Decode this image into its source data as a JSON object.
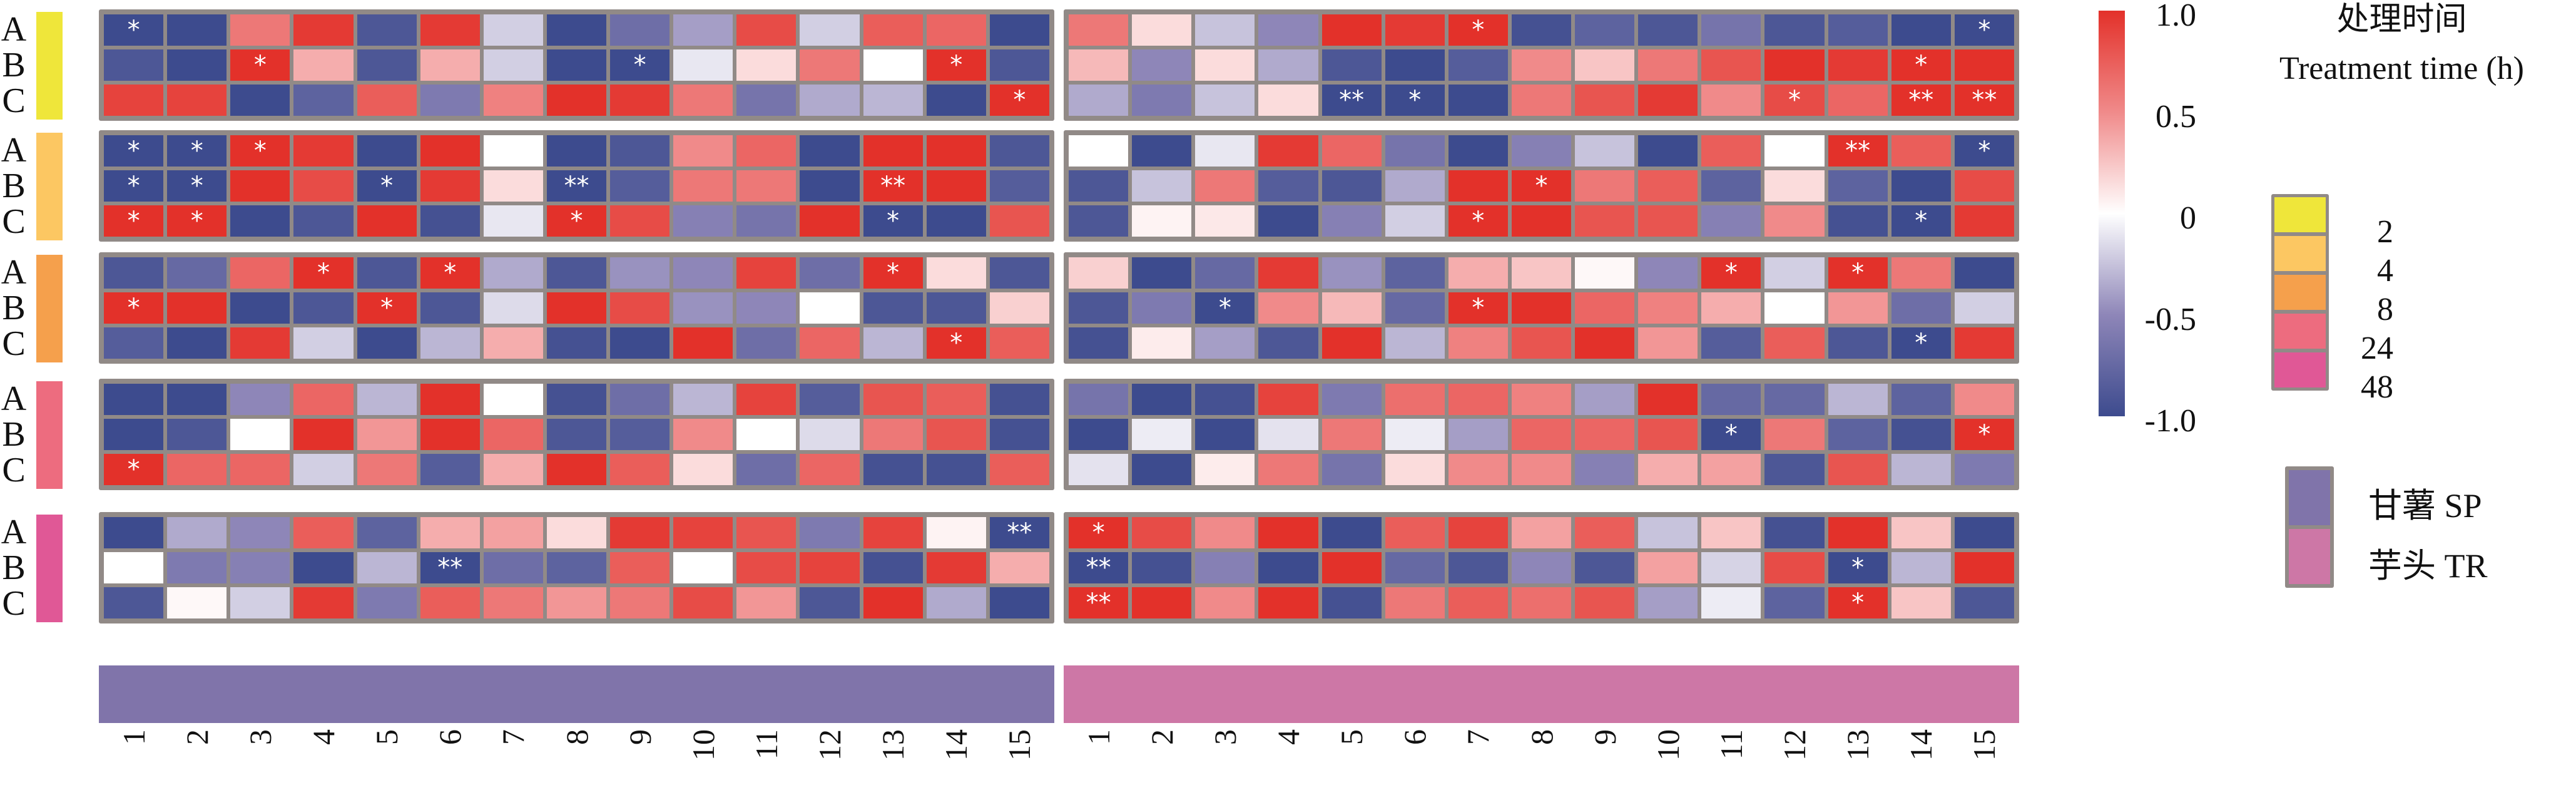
{
  "chart_data": {
    "type": "heatmap",
    "title": "",
    "color_scale": {
      "min": -1.0,
      "max": 1.0,
      "colors": {
        "-1": "#3d4b8e",
        "-0.5": "#8e86b8",
        "0": "#ffffff",
        "0.5": "#f08a8a",
        "1": "#e3312a"
      },
      "tick_labels": [
        {
          "value": 1.0,
          "label": "1.0"
        },
        {
          "value": 0.5,
          "label": "0.5"
        },
        {
          "value": 0,
          "label": "0"
        },
        {
          "value": -0.5,
          "label": "-0.5"
        },
        {
          "value": -1.0,
          "label": "-1.0"
        }
      ]
    },
    "columns": [
      "1",
      "2",
      "3",
      "4",
      "5",
      "6",
      "7",
      "8",
      "9",
      "10",
      "11",
      "12",
      "13",
      "14",
      "15"
    ],
    "row_labels": [
      "A",
      "B",
      "C"
    ],
    "time_legend": {
      "title_cn": "处理时间",
      "title_en": "Treatment time (h)",
      "items": [
        {
          "label": "2",
          "color": "#efe63a"
        },
        {
          "label": "4",
          "color": "#fcc762"
        },
        {
          "label": "8",
          "color": "#f5a04c"
        },
        {
          "label": "24",
          "color": "#ed6c7f"
        },
        {
          "label": "48",
          "color": "#e05896"
        }
      ]
    },
    "species_legend": [
      {
        "label": "甘薯 SP",
        "color": "#8074aa"
      },
      {
        "label": "芋头 TR",
        "color": "#cd77a6"
      }
    ],
    "panels": [
      {
        "name": "甘薯 SP",
        "blocks": [
          {
            "time": "2",
            "rows": [
              {
                "label": "A",
                "values": [
                  -1,
                  -1,
                  0.6,
                  0.95,
                  -0.9,
                  0.95,
                  -0.2,
                  -1,
                  -0.7,
                  -0.4,
                  0.85,
                  -0.2,
                  0.75,
                  0.7,
                  -1
                ],
                "sig": {
                  "1": "*"
                }
              },
              {
                "label": "B",
                "values": [
                  -0.9,
                  -1,
                  1,
                  0.35,
                  -0.9,
                  0.35,
                  -0.2,
                  -1,
                  -1,
                  -0.1,
                  0.15,
                  0.6,
                  0,
                  1,
                  -0.9
                ],
                "sig": {
                  "3": "*",
                  "9": "*",
                  "14": "*"
                }
              },
              {
                "label": "C",
                "values": [
                  0.9,
                  0.9,
                  -1,
                  -0.8,
                  0.75,
                  -0.6,
                  0.55,
                  1,
                  0.95,
                  0.6,
                  -0.65,
                  -0.35,
                  -0.3,
                  -1,
                  1
                ],
                "sig": {
                  "15": "*"
                }
              }
            ]
          },
          {
            "time": "4",
            "rows": [
              {
                "label": "A",
                "values": [
                  -1,
                  -1,
                  1,
                  0.95,
                  -1,
                  1,
                  0,
                  -1,
                  -0.9,
                  0.5,
                  0.7,
                  -1,
                  1,
                  1,
                  -0.9
                ],
                "sig": {
                  "1": "*",
                  "2": "*",
                  "3": "*"
                }
              },
              {
                "label": "B",
                "values": [
                  -1,
                  -1,
                  1,
                  0.85,
                  -1,
                  0.95,
                  0.15,
                  -1,
                  -0.85,
                  0.6,
                  0.6,
                  -1,
                  1,
                  1,
                  -0.85
                ],
                "sig": {
                  "1": "*",
                  "2": "*",
                  "5": "*",
                  "8": "**",
                  "13": "**"
                }
              },
              {
                "label": "C",
                "values": [
                  1,
                  1,
                  -1,
                  -0.9,
                  1,
                  -0.95,
                  -0.1,
                  1,
                  0.85,
                  -0.55,
                  -0.65,
                  1,
                  -1,
                  -1,
                  0.8
                ],
                "sig": {
                  "1": "*",
                  "2": "*",
                  "8": "*",
                  "13": "*"
                }
              }
            ]
          },
          {
            "time": "8",
            "rows": [
              {
                "label": "A",
                "values": [
                  -0.9,
                  -0.75,
                  0.7,
                  1,
                  -0.9,
                  1,
                  -0.35,
                  -0.9,
                  -0.45,
                  -0.5,
                  0.9,
                  -0.7,
                  1,
                  0.15,
                  -0.9
                ],
                "sig": {
                  "4": "*",
                  "6": "*",
                  "13": "*"
                }
              },
              {
                "label": "B",
                "values": [
                  1,
                  1,
                  -1,
                  -0.9,
                  1,
                  -0.9,
                  -0.15,
                  1,
                  0.85,
                  -0.45,
                  -0.5,
                  0,
                  -0.9,
                  -0.9,
                  0.2
                ],
                "sig": {
                  "1": "*",
                  "5": "*"
                }
              },
              {
                "label": "C",
                "values": [
                  -0.85,
                  -1,
                  0.95,
                  -0.2,
                  -1,
                  -0.3,
                  0.35,
                  -0.95,
                  -1,
                  1,
                  -0.7,
                  0.7,
                  -0.3,
                  1,
                  0.75
                ],
                "sig": {
                  "14": "*"
                }
              }
            ]
          },
          {
            "time": "24",
            "rows": [
              {
                "label": "A",
                "values": [
                  -1,
                  -1,
                  -0.5,
                  0.7,
                  -0.3,
                  1,
                  0,
                  -0.95,
                  -0.7,
                  -0.3,
                  0.9,
                  -0.85,
                  0.8,
                  0.75,
                  -0.95
                ],
                "sig": {}
              },
              {
                "label": "B",
                "values": [
                  -1,
                  -0.9,
                  0,
                  1,
                  0.45,
                  1,
                  0.7,
                  -0.9,
                  -0.85,
                  0.5,
                  0,
                  -0.15,
                  0.6,
                  0.8,
                  -0.95
                ],
                "sig": {}
              },
              {
                "label": "C",
                "values": [
                  1,
                  0.7,
                  0.7,
                  -0.2,
                  0.6,
                  -0.85,
                  0.35,
                  1,
                  0.75,
                  0.15,
                  -0.7,
                  0.7,
                  -0.95,
                  -0.95,
                  0.75
                ],
                "sig": {
                  "1": "*"
                }
              }
            ]
          },
          {
            "time": "48",
            "rows": [
              {
                "label": "A",
                "values": [
                  -1,
                  -0.35,
                  -0.5,
                  0.75,
                  -0.8,
                  0.35,
                  0.4,
                  0.15,
                  0.95,
                  0.9,
                  0.8,
                  -0.6,
                  0.9,
                  0.05,
                  -1
                ],
                "sig": {
                  "15": "**"
                }
              },
              {
                "label": "B",
                "values": [
                  0,
                  -0.6,
                  -0.55,
                  -1,
                  -0.3,
                  -1,
                  -0.7,
                  -0.8,
                  0.75,
                  0,
                  0.85,
                  0.9,
                  -0.95,
                  0.95,
                  0.35
                ],
                "sig": {
                  "6": "**"
                }
              },
              {
                "label": "C",
                "values": [
                  -0.9,
                  0.03,
                  -0.2,
                  0.95,
                  -0.6,
                  0.75,
                  0.6,
                  0.45,
                  0.6,
                  0.85,
                  0.45,
                  -0.9,
                  1,
                  -0.35,
                  -1
                ],
                "sig": {}
              }
            ]
          }
        ]
      },
      {
        "name": "芋头 TR",
        "blocks": [
          {
            "time": "2",
            "rows": [
              {
                "label": "A",
                "values": [
                  0.6,
                  0.15,
                  -0.25,
                  -0.5,
                  1,
                  0.95,
                  1,
                  -0.95,
                  -0.8,
                  -0.9,
                  -0.65,
                  -0.9,
                  -0.85,
                  -1,
                  -1
                ],
                "sig": {
                  "7": "*",
                  "15": "*"
                }
              },
              {
                "label": "B",
                "values": [
                  0.3,
                  -0.5,
                  0.15,
                  -0.35,
                  -0.9,
                  -1,
                  -0.85,
                  0.5,
                  0.25,
                  0.6,
                  0.8,
                  1,
                  0.95,
                  1,
                  1
                ],
                "sig": {
                  "14": "*"
                }
              },
              {
                "label": "C",
                "values": [
                  -0.35,
                  -0.6,
                  -0.25,
                  0.15,
                  -1,
                  -1,
                  -1,
                  0.6,
                  0.8,
                  0.95,
                  0.5,
                  0.85,
                  0.7,
                  1,
                  1
                ],
                "sig": {
                  "5": "**",
                  "6": "*",
                  "12": "*",
                  "14": "**",
                  "15": "**"
                }
              }
            ]
          },
          {
            "time": "4",
            "rows": [
              {
                "label": "A",
                "values": [
                  0,
                  -1,
                  -0.1,
                  0.95,
                  0.7,
                  -0.65,
                  -1,
                  -0.55,
                  -0.25,
                  -1,
                  0.75,
                  0,
                  1,
                  0.75,
                  -1
                ],
                "sig": {
                  "13": "**",
                  "15": "*"
                }
              },
              {
                "label": "B",
                "values": [
                  -0.9,
                  -0.25,
                  0.6,
                  -0.85,
                  -0.9,
                  -0.35,
                  1,
                  1,
                  0.6,
                  0.75,
                  -0.8,
                  0.15,
                  -0.8,
                  -1,
                  0.85
                ],
                "sig": {
                  "8": "*"
                }
              },
              {
                "label": "C",
                "values": [
                  -0.9,
                  0.05,
                  0.1,
                  -1,
                  -0.55,
                  -0.2,
                  1,
                  1,
                  0.8,
                  0.8,
                  -0.55,
                  0.5,
                  -0.95,
                  -1,
                  0.95
                ],
                "sig": {
                  "7": "*",
                  "14": "*"
                }
              }
            ]
          },
          {
            "time": "8",
            "rows": [
              {
                "label": "A",
                "values": [
                  0.2,
                  -1,
                  -0.75,
                  0.95,
                  -0.45,
                  -0.8,
                  0.35,
                  0.25,
                  0.03,
                  -0.5,
                  1,
                  -0.2,
                  1,
                  0.6,
                  -1
                ],
                "sig": {
                  "11": "*",
                  "13": "*"
                }
              },
              {
                "label": "B",
                "values": [
                  -0.9,
                  -0.6,
                  -1,
                  0.5,
                  0.3,
                  -0.75,
                  1,
                  1,
                  0.7,
                  0.55,
                  0.35,
                  0,
                  0.45,
                  -0.7,
                  -0.2
                ],
                "sig": {
                  "3": "*",
                  "7": "*"
                }
              },
              {
                "label": "C",
                "values": [
                  -0.95,
                  0.08,
                  -0.4,
                  -0.9,
                  1,
                  -0.3,
                  0.55,
                  0.8,
                  1,
                  0.45,
                  -0.85,
                  0.75,
                  -0.9,
                  -1,
                  0.95
                ],
                "sig": {
                  "14": "*"
                }
              }
            ]
          },
          {
            "time": "24",
            "rows": [
              {
                "label": "A",
                "values": [
                  -0.65,
                  -1,
                  -0.95,
                  0.9,
                  -0.6,
                  0.65,
                  0.7,
                  0.55,
                  -0.4,
                  1,
                  -0.75,
                  -0.75,
                  -0.3,
                  -0.8,
                  0.5
                ],
                "sig": {}
              },
              {
                "label": "B",
                "values": [
                  -1,
                  -0.08,
                  -1,
                  -0.12,
                  0.6,
                  -0.08,
                  -0.4,
                  0.7,
                  0.7,
                  0.8,
                  -1,
                  0.6,
                  -0.8,
                  -0.95,
                  1
                ],
                "sig": {
                  "11": "*",
                  "15": "*"
                }
              },
              {
                "label": "C",
                "values": [
                  -0.12,
                  -1,
                  0.08,
                  0.6,
                  -0.65,
                  0.15,
                  0.5,
                  0.5,
                  -0.55,
                  0.35,
                  0.4,
                  -0.9,
                  0.8,
                  -0.3,
                  -0.6
                ],
                "sig": {}
              }
            ]
          },
          {
            "time": "48",
            "rows": [
              {
                "label": "A",
                "values": [
                  1,
                  0.85,
                  0.5,
                  1,
                  -1,
                  0.75,
                  0.9,
                  0.4,
                  0.75,
                  -0.25,
                  0.25,
                  -0.95,
                  1,
                  0.25,
                  -1
                ],
                "sig": {
                  "1": "*"
                }
              },
              {
                "label": "B",
                "values": [
                  -1,
                  -0.95,
                  -0.55,
                  -1,
                  1,
                  -0.75,
                  -0.9,
                  -0.5,
                  -0.9,
                  0.4,
                  -0.18,
                  0.85,
                  -1,
                  -0.3,
                  1
                ],
                "sig": {
                  "1": "**",
                  "13": "*"
                }
              },
              {
                "label": "C",
                "values": [
                  1,
                  1,
                  0.5,
                  1,
                  -0.95,
                  0.6,
                  0.75,
                  0.65,
                  0.8,
                  -0.4,
                  -0.08,
                  -0.8,
                  1,
                  0.25,
                  -0.9
                ],
                "sig": {
                  "1": "**",
                  "13": "*"
                }
              }
            ]
          }
        ]
      }
    ]
  }
}
